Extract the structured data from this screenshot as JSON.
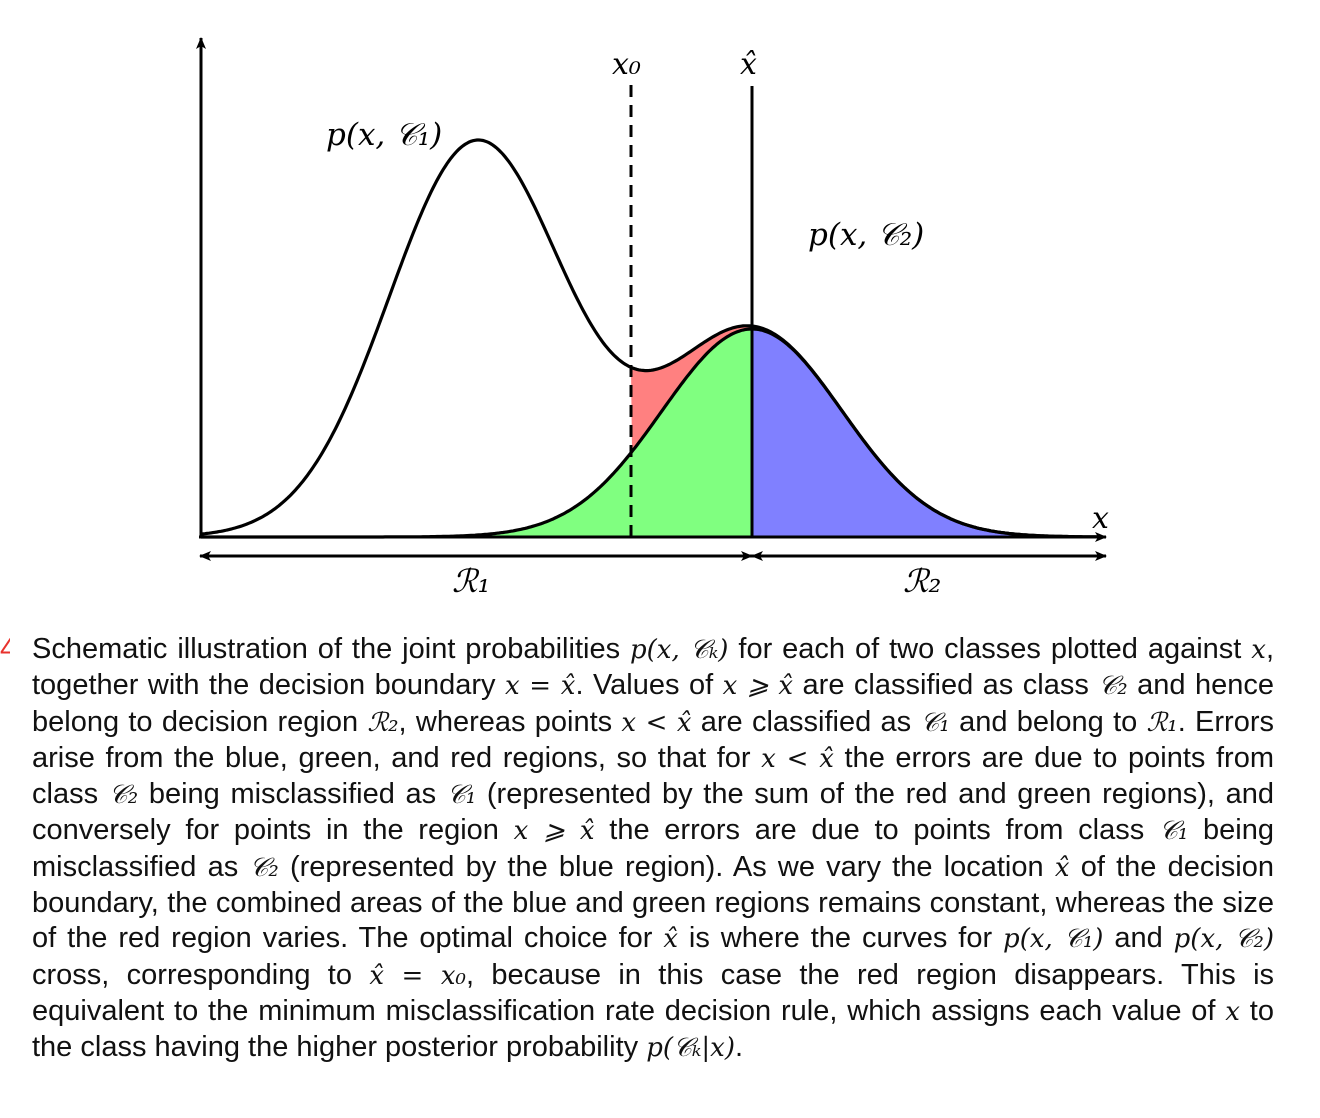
{
  "figure": {
    "labels": {
      "x_axis": "x",
      "x0": "x₀",
      "xhat": "x̂",
      "curve_c1": "p(x, 𝒞₁)",
      "curve_c2": "p(x, 𝒞₂)",
      "region_1": "ℛ₁",
      "region_2": "ℛ₂"
    },
    "colors": {
      "red_region": "#ff8080",
      "green_region": "#80ff80",
      "blue_region": "#8080ff",
      "curve": "#000000"
    }
  },
  "caption": {
    "figure_number_fragment": "4",
    "segments": [
      {
        "t": "Schematic illustration of the joint probabilities "
      },
      {
        "m": "p(x, 𝒞ₖ)"
      },
      {
        "t": " for each of two classes plotted against "
      },
      {
        "m": "x"
      },
      {
        "t": ", together with the decision boundary "
      },
      {
        "m": "x = x̂"
      },
      {
        "t": ". Values of "
      },
      {
        "m": "x ⩾ x̂"
      },
      {
        "t": " are classified as class "
      },
      {
        "m": "𝒞₂"
      },
      {
        "t": " and hence belong to decision region "
      },
      {
        "m": "ℛ₂"
      },
      {
        "t": ", whereas points "
      },
      {
        "m": "x < x̂"
      },
      {
        "t": " are classified as "
      },
      {
        "m": "𝒞₁"
      },
      {
        "t": " and belong to "
      },
      {
        "m": "ℛ₁"
      },
      {
        "t": ". Errors arise from the blue, green, and red regions, so that for "
      },
      {
        "m": "x < x̂"
      },
      {
        "t": " the errors are due to points from class "
      },
      {
        "m": "𝒞₂"
      },
      {
        "t": " being misclassified as "
      },
      {
        "m": "𝒞₁"
      },
      {
        "t": " (represented by the sum of the red and green regions), and conversely for points in the region "
      },
      {
        "m": "x ⩾ x̂"
      },
      {
        "t": " the errors are due to points from class "
      },
      {
        "m": "𝒞₁"
      },
      {
        "t": " being misclassified as "
      },
      {
        "m": "𝒞₂"
      },
      {
        "t": " (represented by the blue region). As we vary the location "
      },
      {
        "m": "x̂"
      },
      {
        "t": " of the decision boundary, the combined areas of the blue and green regions remains constant, whereas the size of the red region varies. The optimal choice for "
      },
      {
        "m": "x̂"
      },
      {
        "t": " is where the curves for "
      },
      {
        "m": "p(x, 𝒞₁)"
      },
      {
        "t": " and "
      },
      {
        "m": "p(x, 𝒞₂)"
      },
      {
        "t": " cross, corresponding to "
      },
      {
        "m": "x̂ = x₀"
      },
      {
        "t": ", because in this case the red region disappears. This is equivalent to the minimum misclassification rate decision rule, which assigns each value of "
      },
      {
        "m": "x"
      },
      {
        "t": " to the class having the higher posterior probability "
      },
      {
        "m": "p(𝒞ₖ|x)"
      },
      {
        "t": "."
      }
    ]
  }
}
